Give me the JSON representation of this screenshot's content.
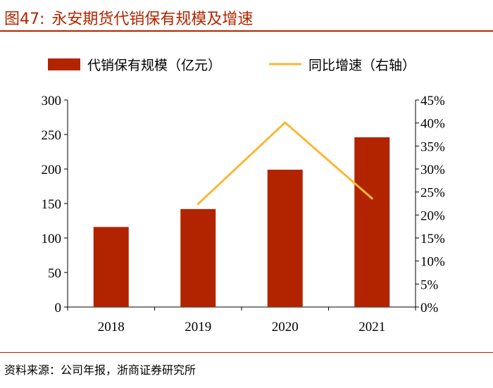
{
  "figure": {
    "number": "图47:",
    "title": "永安期货代销保有规模及增速",
    "source": "资料来源：公司年报，浙商证券研究所"
  },
  "colors": {
    "accent": "#b22400",
    "bar": "#b22400",
    "line": "#fbb735"
  },
  "chart_data": {
    "type": "bar",
    "categories": [
      "2018",
      "2019",
      "2020",
      "2021"
    ],
    "series": [
      {
        "name": "代销保有规模（亿元）",
        "type": "bar",
        "axis": "left",
        "values": [
          116,
          142,
          199,
          246
        ]
      },
      {
        "name": "同比增速（右轴）",
        "type": "line",
        "axis": "right",
        "values": [
          null,
          22.4,
          40.1,
          23.6
        ]
      }
    ],
    "ylim": [
      0,
      300
    ],
    "y_ticks": [
      "0",
      "50",
      "100",
      "150",
      "200",
      "250",
      "300"
    ],
    "y2lim": [
      0,
      45
    ],
    "y2_ticks": [
      "0%",
      "5%",
      "10%",
      "15%",
      "20%",
      "25%",
      "30%",
      "35%",
      "40%",
      "45%"
    ],
    "legend": "top",
    "grid": false
  }
}
